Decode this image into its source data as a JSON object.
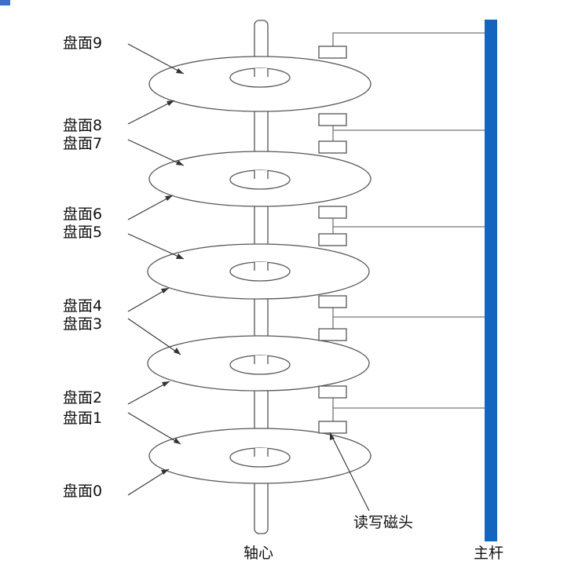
{
  "labels": {
    "platters": [
      "盘面9",
      "盘面8",
      "盘面7",
      "盘面6",
      "盘面5",
      "盘面4",
      "盘面3",
      "盘面2",
      "盘面1",
      "盘面0"
    ],
    "spindle": "轴心",
    "heads": "读写磁头",
    "arm": "主杆"
  },
  "colors": {
    "arm": "#1565c0",
    "stroke": "#555555",
    "leader": "#333333",
    "corner_mark": "#3b6fc9"
  }
}
